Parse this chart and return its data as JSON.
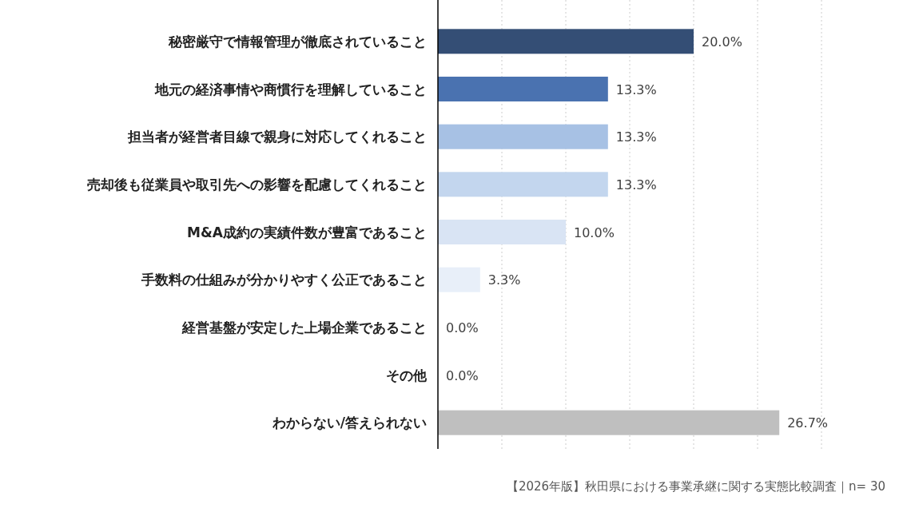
{
  "chart_data": {
    "type": "bar",
    "orientation": "horizontal",
    "categories": [
      "秘密厳守で情報管理が徹底されていること",
      "地元の経済事情や商慣行を理解していること",
      "担当者が経営者目線で親身に対応してくれること",
      "売却後も従業員や取引先への影響を配慮してくれること",
      "M&A成約の実績件数が豊富であること",
      "手数料の仕組みが分かりやすく公正であること",
      "経営基盤が安定した上場企業であること",
      "その他",
      "わからない/答えられない"
    ],
    "values": [
      20.0,
      13.3,
      13.3,
      13.3,
      10.0,
      3.3,
      0.0,
      0.0,
      26.7
    ],
    "colors": [
      "#344e75",
      "#4a72b0",
      "#a7c1e4",
      "#c3d6ee",
      "#d9e4f4",
      "#e8eff9",
      "#eef3fa",
      "#eef3fa",
      "#bfbfbf"
    ],
    "value_labels": [
      "20.0%",
      "13.3%",
      "13.3%",
      "13.3%",
      "10.0%",
      "3.3%",
      "0.0%",
      "0.0%",
      "26.7%"
    ],
    "xlim": [
      0,
      30
    ],
    "xticks": [
      {
        "value": 0,
        "label": null
      },
      {
        "value": 5,
        "label": null
      },
      {
        "value": 10,
        "label": null
      },
      {
        "value": 15,
        "label": null
      },
      {
        "value": 20,
        "label": null
      },
      {
        "value": 25,
        "label": null
      },
      {
        "value": 30,
        "label": null
      }
    ],
    "grid": "x",
    "tick_labels": "y",
    "annotations": [
      "【2026年版】秋田県における事業承継に関する実態比較調査｜n= 30"
    ]
  }
}
